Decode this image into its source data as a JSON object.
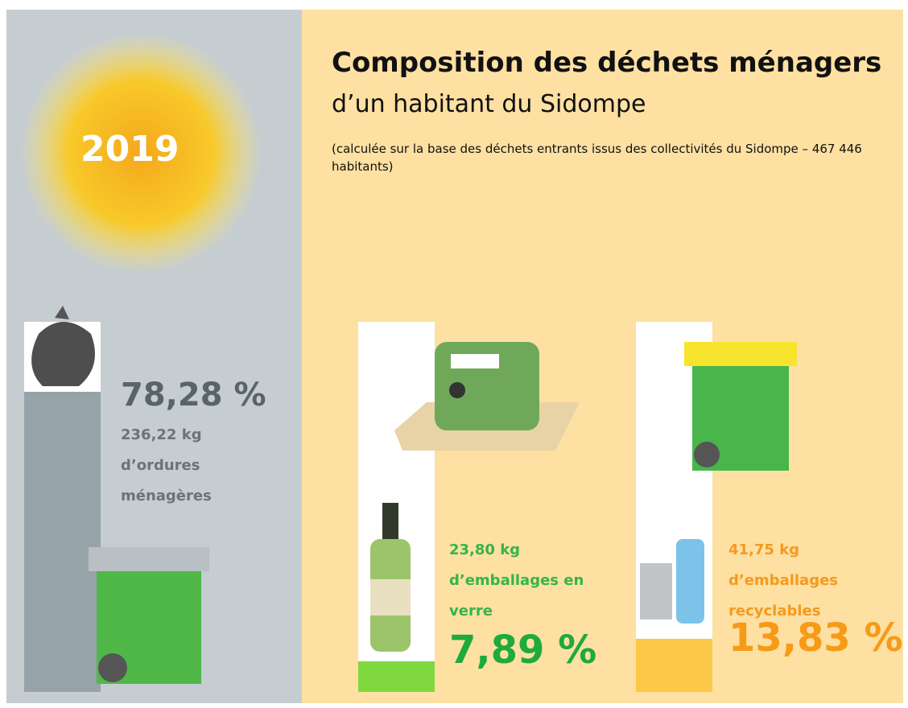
{
  "chart_data": {
    "type": "bar",
    "title": "Composition des déchets ménagers",
    "subtitle": "d’un habitant du Sidompe",
    "note": "(calculée sur la base des déchets entrants issus des collectivités du Sidompe – 467 446 habitants)",
    "annotation": "2019",
    "categories": [
      "236,22 kg d’ordures ménagères",
      "23,80 kg d’emballages en verre",
      "41,75 kg d’emballages recyclables"
    ],
    "values": [
      78.28,
      7.89,
      13.83
    ],
    "value_labels": [
      "78,28 %",
      "7,89 %",
      "13,83 %"
    ],
    "colors": [
      "#96a3a8",
      "#7fd83e",
      "#fbc848"
    ]
  }
}
